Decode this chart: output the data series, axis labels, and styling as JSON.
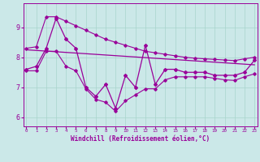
{
  "xlabel": "Windchill (Refroidissement éolien,°C)",
  "hours": [
    0,
    1,
    2,
    3,
    4,
    5,
    6,
    7,
    8,
    9,
    10,
    11,
    12,
    13,
    14,
    15,
    16,
    17,
    18,
    19,
    20,
    21,
    22,
    23
  ],
  "main_data": [
    7.6,
    7.7,
    8.3,
    9.3,
    8.6,
    8.3,
    7.0,
    6.7,
    7.1,
    6.3,
    7.4,
    7.0,
    8.4,
    7.1,
    7.6,
    7.6,
    7.5,
    7.5,
    7.5,
    7.4,
    7.4,
    7.4,
    7.5,
    7.9
  ],
  "upper_line": [
    8.3,
    8.35,
    9.35,
    9.35,
    9.2,
    9.05,
    8.9,
    8.75,
    8.6,
    8.5,
    8.4,
    8.3,
    8.2,
    8.15,
    8.1,
    8.05,
    8.0,
    7.97,
    7.95,
    7.93,
    7.91,
    7.89,
    7.95,
    8.0
  ],
  "lower_line": [
    7.55,
    7.55,
    8.2,
    8.2,
    7.7,
    7.55,
    6.95,
    6.6,
    6.5,
    6.2,
    6.55,
    6.75,
    6.95,
    6.95,
    7.25,
    7.35,
    7.35,
    7.35,
    7.35,
    7.3,
    7.25,
    7.23,
    7.35,
    7.45
  ],
  "trend_x": [
    0,
    23
  ],
  "trend_y": [
    8.25,
    7.75
  ],
  "line_color": "#990099",
  "bg_color": "#cbe8e8",
  "grid_color": "#a8d4cc",
  "ylim": [
    5.7,
    9.8
  ],
  "xlim_min": -0.3,
  "xlim_max": 23.3,
  "yticks": [
    6,
    7,
    8,
    9
  ],
  "xticks": [
    0,
    1,
    2,
    3,
    4,
    5,
    6,
    7,
    8,
    9,
    10,
    11,
    12,
    13,
    14,
    15,
    16,
    17,
    18,
    19,
    20,
    21,
    22,
    23
  ]
}
